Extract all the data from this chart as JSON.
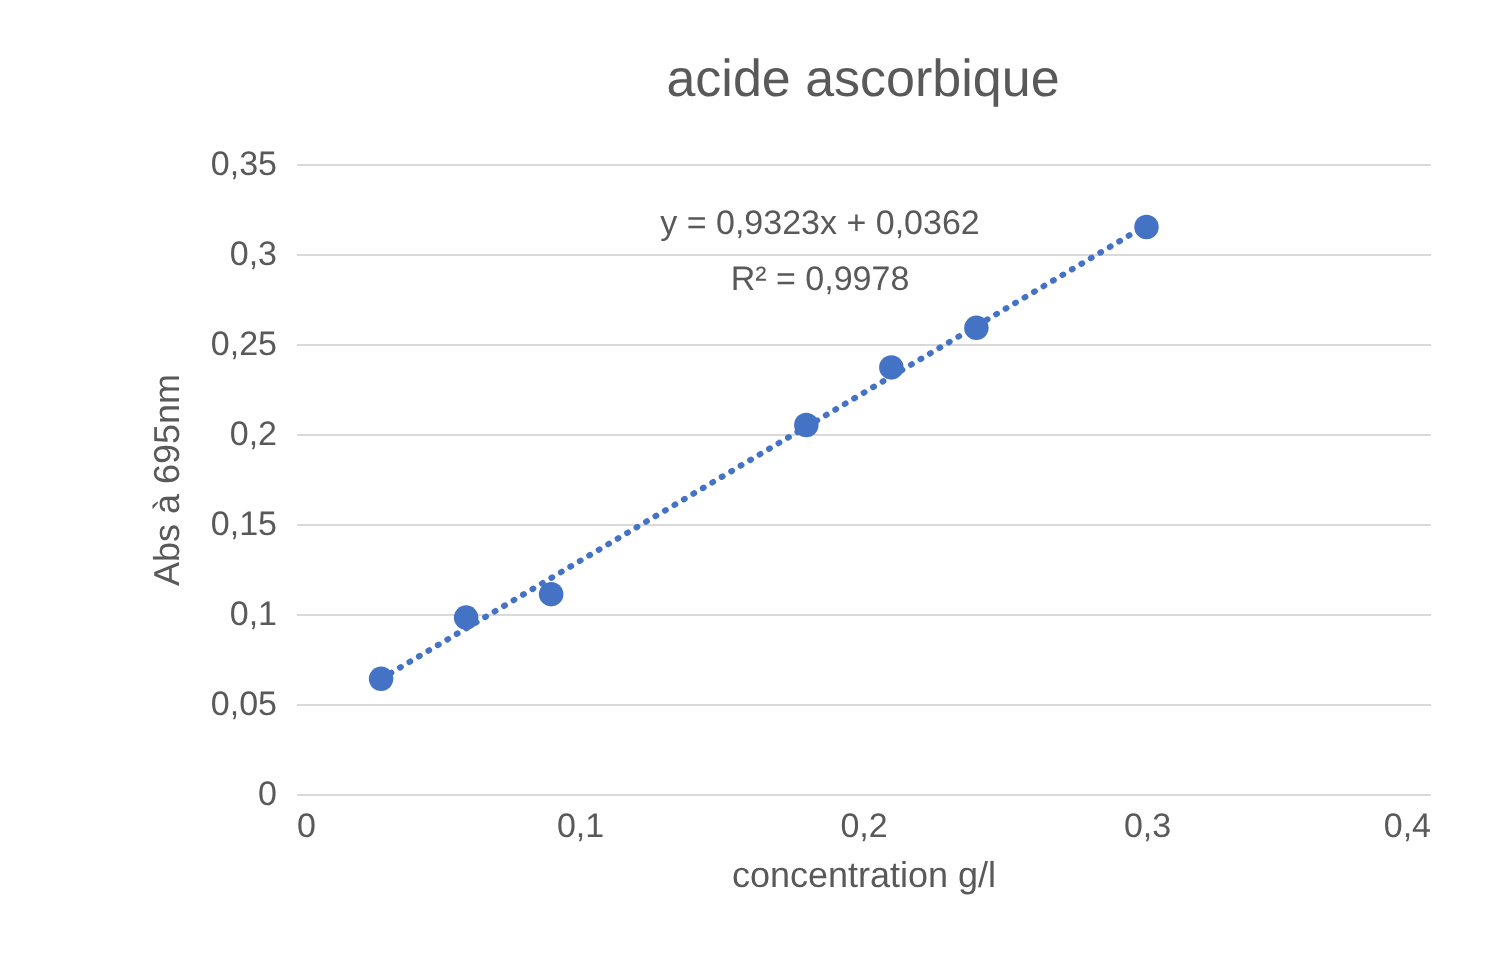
{
  "chart_data": {
    "type": "scatter",
    "title": "acide ascorbique",
    "xlabel": "concentration g/l",
    "ylabel": "Abs à 695nm",
    "x": [
      0.03,
      0.06,
      0.09,
      0.18,
      0.21,
      0.24,
      0.3
    ],
    "series": [
      {
        "color": "#4472c4",
        "marker": "circle",
        "values": [
          0.064,
          0.098,
          0.111,
          0.205,
          0.237,
          0.259,
          0.315
        ]
      },
      {
        "type": "line",
        "color": "#4472c4",
        "line_style": "dotted",
        "marker": "none",
        "x": [
          0.03,
          0.3
        ],
        "values": [
          0.064,
          0.316
        ]
      }
    ],
    "xlim": [
      0,
      0.4
    ],
    "xticks": [
      0,
      {
        "value": 0.1,
        "label": "0,1"
      },
      {
        "value": 0.2,
        "label": "0,2"
      },
      {
        "value": 0.3,
        "label": "0,3"
      },
      {
        "value": 0.4,
        "label": "0,4"
      }
    ],
    "ylim": [
      0,
      0.35
    ],
    "yticks": [
      0,
      {
        "value": 0.05,
        "label": "0,05"
      },
      {
        "value": 0.1,
        "label": "0,1"
      },
      {
        "value": 0.15,
        "label": "0,15"
      },
      {
        "value": 0.2,
        "label": "0,2"
      },
      {
        "value": 0.25,
        "label": "0,25"
      },
      {
        "value": 0.3,
        "label": "0,3"
      },
      {
        "value": 0.35,
        "label": "0,35"
      }
    ],
    "grid": "y",
    "annotations": [
      "y = 0,9323x + 0,0362",
      "R² = 0,9978"
    ]
  }
}
